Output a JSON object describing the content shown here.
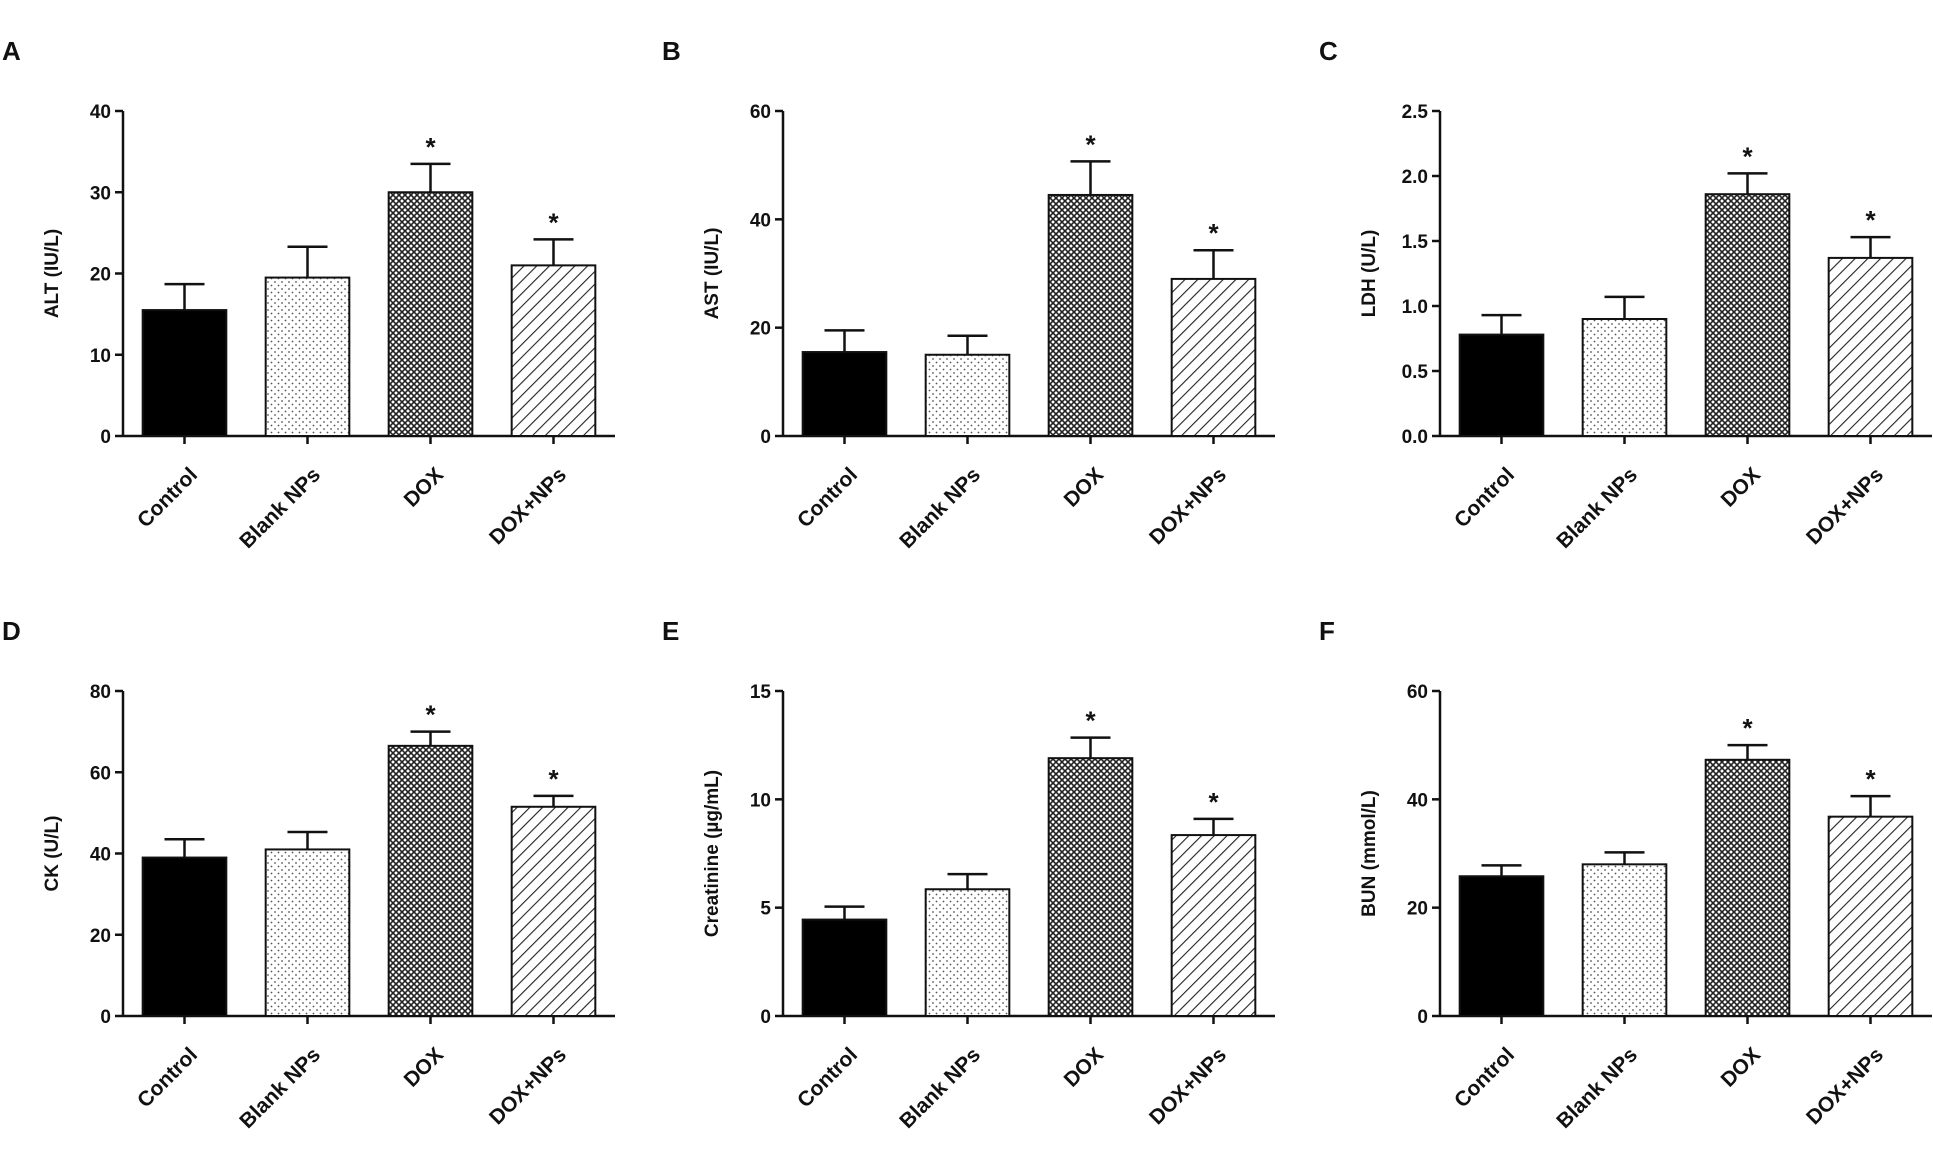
{
  "chart_data": [
    {
      "type": "bar",
      "panel": "A",
      "y_label": "ALT (IU/L)",
      "categories": [
        "Control",
        "Blank NPs",
        "DOX",
        "DOX+NPs"
      ],
      "values": [
        15.5,
        19.5,
        30,
        21
      ],
      "errors": [
        3.2,
        3.8,
        3.5,
        3.2
      ],
      "significance": [
        null,
        null,
        "*",
        "*"
      ],
      "patterns": [
        "solid",
        "dots",
        "crosshatch",
        "diagonal"
      ],
      "color": "#000000",
      "ylim": [
        0,
        40
      ],
      "yticks": [
        0,
        10,
        20,
        30,
        40
      ]
    },
    {
      "type": "bar",
      "panel": "B",
      "y_label": "AST (IU/L)",
      "categories": [
        "Control",
        "Blank NPs",
        "DOX",
        "DOX+NPs"
      ],
      "values": [
        15.5,
        15,
        44.5,
        29
      ],
      "errors": [
        4,
        3.5,
        6.2,
        5.3
      ],
      "significance": [
        null,
        null,
        "*",
        "*"
      ],
      "patterns": [
        "solid",
        "dots",
        "crosshatch",
        "diagonal"
      ],
      "color": "#000000",
      "ylim": [
        0,
        60
      ],
      "yticks": [
        0,
        20,
        40,
        60
      ]
    },
    {
      "type": "bar",
      "panel": "C",
      "y_label": "LDH (U/L)",
      "categories": [
        "Control",
        "Blank NPs",
        "DOX",
        "DOX+NPs"
      ],
      "values": [
        0.78,
        0.9,
        1.86,
        1.37
      ],
      "errors": [
        0.15,
        0.17,
        0.16,
        0.16
      ],
      "significance": [
        null,
        null,
        "*",
        "*"
      ],
      "patterns": [
        "solid",
        "dots",
        "crosshatch",
        "diagonal"
      ],
      "color": "#000000",
      "ylim": [
        0,
        2.5
      ],
      "yticks": [
        {
          "value": 0,
          "label": "0.0"
        },
        0.5,
        {
          "value": 1,
          "label": "1.0"
        },
        1.5,
        {
          "value": 2,
          "label": "2.0"
        },
        2.5
      ]
    },
    {
      "type": "bar",
      "panel": "D",
      "y_label": "CK (U/L)",
      "categories": [
        "Control",
        "Blank NPs",
        "DOX",
        "DOX+NPs"
      ],
      "values": [
        39,
        41,
        66.5,
        51.5
      ],
      "errors": [
        4.5,
        4.3,
        3.5,
        2.7
      ],
      "significance": [
        null,
        null,
        "*",
        "*"
      ],
      "patterns": [
        "solid",
        "dots",
        "crosshatch",
        "diagonal"
      ],
      "color": "#000000",
      "ylim": [
        0,
        80
      ],
      "yticks": [
        0,
        20,
        40,
        60,
        80
      ]
    },
    {
      "type": "bar",
      "panel": "E",
      "y_label": "Creatinine (µg/mL)",
      "categories": [
        "Control",
        "Blank NPs",
        "DOX",
        "DOX+NPs"
      ],
      "values": [
        4.45,
        5.85,
        11.9,
        8.35
      ],
      "errors": [
        0.6,
        0.7,
        0.95,
        0.75
      ],
      "significance": [
        null,
        null,
        "*",
        "*"
      ],
      "patterns": [
        "solid",
        "dots",
        "crosshatch",
        "diagonal"
      ],
      "color": "#000000",
      "ylim": [
        0,
        15
      ],
      "yticks": [
        0,
        5,
        10,
        15
      ]
    },
    {
      "type": "bar",
      "panel": "F",
      "y_label": "BUN (mmol/L)",
      "categories": [
        "Control",
        "Blank NPs",
        "DOX",
        "DOX+NPs"
      ],
      "values": [
        25.8,
        28,
        47.3,
        36.8
      ],
      "errors": [
        2,
        2.2,
        2.7,
        3.8
      ],
      "significance": [
        null,
        null,
        "*",
        "*"
      ],
      "patterns": [
        "solid",
        "dots",
        "crosshatch",
        "diagonal"
      ],
      "color": "#000000",
      "ylim": [
        0,
        60
      ],
      "yticks": [
        0,
        20,
        40,
        60
      ]
    }
  ]
}
